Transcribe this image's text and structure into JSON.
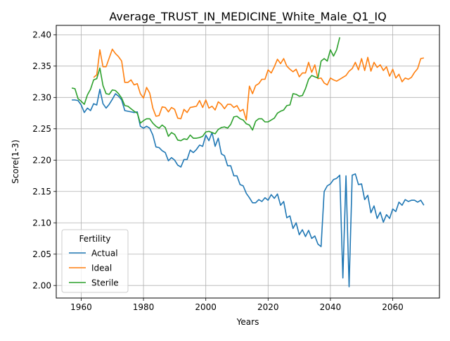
{
  "chart_data": {
    "type": "line",
    "title": "Average_TRUST_IN_MEDICINE_White_Male_Q1_IQ",
    "xlabel": "Years",
    "ylabel": "Score(1-3)",
    "xlim": [
      1952,
      2075
    ],
    "ylim": [
      1.98,
      2.415
    ],
    "x_ticks": [
      1960,
      1980,
      2000,
      2020,
      2040,
      2060
    ],
    "y_ticks": [
      2.0,
      2.05,
      2.1,
      2.15,
      2.2,
      2.25,
      2.3,
      2.35,
      2.4
    ],
    "y_tick_labels": [
      "2.00",
      "2.05",
      "2.10",
      "2.15",
      "2.20",
      "2.25",
      "2.30",
      "2.35",
      "2.40"
    ],
    "grid": true,
    "legend": {
      "title": "Fertility",
      "placement": "lower-left"
    },
    "series": [
      {
        "name": "Actual",
        "color": "#1f77b4",
        "points": [
          [
            1957,
            2.296
          ],
          [
            1958,
            2.296
          ],
          [
            1959,
            2.295
          ],
          [
            1960,
            2.288
          ],
          [
            1961,
            2.276
          ],
          [
            1962,
            2.283
          ],
          [
            1963,
            2.279
          ],
          [
            1964,
            2.29
          ],
          [
            1965,
            2.288
          ],
          [
            1966,
            2.313
          ],
          [
            1967,
            2.29
          ],
          [
            1968,
            2.283
          ],
          [
            1969,
            2.289
          ],
          [
            1970,
            2.297
          ],
          [
            1971,
            2.306
          ],
          [
            1972,
            2.302
          ],
          [
            1973,
            2.296
          ],
          [
            1974,
            2.279
          ],
          [
            1975,
            2.278
          ],
          [
            1976,
            2.277
          ],
          [
            1977,
            2.276
          ],
          [
            1978,
            2.277
          ],
          [
            1979,
            2.254
          ],
          [
            1980,
            2.251
          ],
          [
            1981,
            2.254
          ],
          [
            1982,
            2.251
          ],
          [
            1983,
            2.24
          ],
          [
            1984,
            2.221
          ],
          [
            1985,
            2.22
          ],
          [
            1986,
            2.215
          ],
          [
            1987,
            2.212
          ],
          [
            1988,
            2.199
          ],
          [
            1989,
            2.204
          ],
          [
            1990,
            2.2
          ],
          [
            1991,
            2.192
          ],
          [
            1992,
            2.189
          ],
          [
            1993,
            2.201
          ],
          [
            1994,
            2.201
          ],
          [
            1995,
            2.216
          ],
          [
            1996,
            2.212
          ],
          [
            1997,
            2.217
          ],
          [
            1998,
            2.224
          ],
          [
            1999,
            2.222
          ],
          [
            2000,
            2.24
          ],
          [
            2001,
            2.231
          ],
          [
            2002,
            2.244
          ],
          [
            2003,
            2.222
          ],
          [
            2004,
            2.235
          ],
          [
            2005,
            2.21
          ],
          [
            2006,
            2.207
          ],
          [
            2007,
            2.191
          ],
          [
            2008,
            2.191
          ],
          [
            2009,
            2.175
          ],
          [
            2010,
            2.175
          ],
          [
            2011,
            2.161
          ],
          [
            2012,
            2.159
          ],
          [
            2013,
            2.147
          ],
          [
            2014,
            2.14
          ],
          [
            2015,
            2.132
          ],
          [
            2016,
            2.132
          ],
          [
            2017,
            2.137
          ],
          [
            2018,
            2.134
          ],
          [
            2019,
            2.14
          ],
          [
            2020,
            2.136
          ],
          [
            2021,
            2.145
          ],
          [
            2022,
            2.139
          ],
          [
            2023,
            2.146
          ],
          [
            2024,
            2.128
          ],
          [
            2025,
            2.134
          ],
          [
            2026,
            2.108
          ],
          [
            2027,
            2.111
          ],
          [
            2028,
            2.091
          ],
          [
            2029,
            2.1
          ],
          [
            2030,
            2.081
          ],
          [
            2031,
            2.089
          ],
          [
            2032,
            2.078
          ],
          [
            2033,
            2.088
          ],
          [
            2034,
            2.075
          ],
          [
            2035,
            2.079
          ],
          [
            2036,
            2.066
          ],
          [
            2037,
            2.062
          ],
          [
            2038,
            2.15
          ],
          [
            2039,
            2.159
          ],
          [
            2040,
            2.162
          ],
          [
            2041,
            2.169
          ],
          [
            2042,
            2.171
          ],
          [
            2043,
            2.176
          ],
          [
            2044,
            2.012
          ],
          [
            2045,
            2.175
          ],
          [
            2046,
            1.998
          ],
          [
            2047,
            2.176
          ],
          [
            2048,
            2.178
          ],
          [
            2049,
            2.161
          ],
          [
            2050,
            2.162
          ],
          [
            2051,
            2.137
          ],
          [
            2052,
            2.144
          ],
          [
            2053,
            2.116
          ],
          [
            2054,
            2.127
          ],
          [
            2055,
            2.107
          ],
          [
            2056,
            2.117
          ],
          [
            2057,
            2.101
          ],
          [
            2058,
            2.113
          ],
          [
            2059,
            2.107
          ],
          [
            2060,
            2.122
          ],
          [
            2061,
            2.118
          ],
          [
            2062,
            2.133
          ],
          [
            2063,
            2.128
          ],
          [
            2064,
            2.137
          ],
          [
            2065,
            2.134
          ],
          [
            2066,
            2.136
          ],
          [
            2067,
            2.136
          ],
          [
            2068,
            2.133
          ],
          [
            2069,
            2.136
          ],
          [
            2070,
            2.128
          ]
        ]
      },
      {
        "name": "Ideal",
        "color": "#ff7f0e",
        "points": [
          [
            1964,
            2.332
          ],
          [
            1965,
            2.336
          ],
          [
            1966,
            2.376
          ],
          [
            1967,
            2.349
          ],
          [
            1968,
            2.349
          ],
          [
            1969,
            2.363
          ],
          [
            1970,
            2.377
          ],
          [
            1971,
            2.37
          ],
          [
            1972,
            2.365
          ],
          [
            1973,
            2.358
          ],
          [
            1974,
            2.324
          ],
          [
            1975,
            2.324
          ],
          [
            1976,
            2.328
          ],
          [
            1977,
            2.32
          ],
          [
            1978,
            2.322
          ],
          [
            1979,
            2.306
          ],
          [
            1980,
            2.299
          ],
          [
            1981,
            2.316
          ],
          [
            1982,
            2.307
          ],
          [
            1983,
            2.283
          ],
          [
            1984,
            2.27
          ],
          [
            1985,
            2.271
          ],
          [
            1986,
            2.285
          ],
          [
            1987,
            2.284
          ],
          [
            1988,
            2.277
          ],
          [
            1989,
            2.284
          ],
          [
            1990,
            2.281
          ],
          [
            1991,
            2.267
          ],
          [
            1992,
            2.266
          ],
          [
            1993,
            2.281
          ],
          [
            1994,
            2.276
          ],
          [
            1995,
            2.284
          ],
          [
            1996,
            2.285
          ],
          [
            1997,
            2.286
          ],
          [
            1998,
            2.295
          ],
          [
            1999,
            2.284
          ],
          [
            2000,
            2.296
          ],
          [
            2001,
            2.283
          ],
          [
            2002,
            2.286
          ],
          [
            2003,
            2.28
          ],
          [
            2004,
            2.293
          ],
          [
            2005,
            2.289
          ],
          [
            2006,
            2.282
          ],
          [
            2007,
            2.289
          ],
          [
            2008,
            2.289
          ],
          [
            2009,
            2.284
          ],
          [
            2010,
            2.287
          ],
          [
            2011,
            2.278
          ],
          [
            2012,
            2.281
          ],
          [
            2013,
            2.264
          ],
          [
            2014,
            2.318
          ],
          [
            2015,
            2.306
          ],
          [
            2016,
            2.319
          ],
          [
            2017,
            2.322
          ],
          [
            2018,
            2.329
          ],
          [
            2019,
            2.329
          ],
          [
            2020,
            2.344
          ],
          [
            2021,
            2.339
          ],
          [
            2022,
            2.349
          ],
          [
            2023,
            2.361
          ],
          [
            2024,
            2.354
          ],
          [
            2025,
            2.362
          ],
          [
            2026,
            2.35
          ],
          [
            2027,
            2.345
          ],
          [
            2028,
            2.341
          ],
          [
            2029,
            2.345
          ],
          [
            2030,
            2.333
          ],
          [
            2031,
            2.339
          ],
          [
            2032,
            2.339
          ],
          [
            2033,
            2.356
          ],
          [
            2034,
            2.34
          ],
          [
            2035,
            2.352
          ],
          [
            2036,
            2.33
          ],
          [
            2037,
            2.331
          ],
          [
            2038,
            2.323
          ],
          [
            2039,
            2.32
          ],
          [
            2040,
            2.331
          ],
          [
            2041,
            2.328
          ],
          [
            2042,
            2.326
          ],
          [
            2043,
            2.329
          ],
          [
            2044,
            2.332
          ],
          [
            2045,
            2.335
          ],
          [
            2046,
            2.342
          ],
          [
            2047,
            2.346
          ],
          [
            2048,
            2.356
          ],
          [
            2049,
            2.344
          ],
          [
            2050,
            2.362
          ],
          [
            2051,
            2.343
          ],
          [
            2052,
            2.364
          ],
          [
            2053,
            2.342
          ],
          [
            2054,
            2.356
          ],
          [
            2055,
            2.348
          ],
          [
            2056,
            2.352
          ],
          [
            2057,
            2.343
          ],
          [
            2058,
            2.349
          ],
          [
            2059,
            2.334
          ],
          [
            2060,
            2.345
          ],
          [
            2061,
            2.331
          ],
          [
            2062,
            2.337
          ],
          [
            2063,
            2.325
          ],
          [
            2064,
            2.331
          ],
          [
            2065,
            2.329
          ],
          [
            2066,
            2.332
          ],
          [
            2067,
            2.34
          ],
          [
            2068,
            2.346
          ],
          [
            2069,
            2.362
          ],
          [
            2070,
            2.363
          ]
        ]
      },
      {
        "name": "Sterile",
        "color": "#2ca02c",
        "points": [
          [
            1957,
            2.315
          ],
          [
            1958,
            2.314
          ],
          [
            1959,
            2.298
          ],
          [
            1960,
            2.294
          ],
          [
            1961,
            2.289
          ],
          [
            1962,
            2.304
          ],
          [
            1963,
            2.313
          ],
          [
            1964,
            2.328
          ],
          [
            1965,
            2.33
          ],
          [
            1966,
            2.347
          ],
          [
            1967,
            2.319
          ],
          [
            1968,
            2.306
          ],
          [
            1969,
            2.305
          ],
          [
            1970,
            2.312
          ],
          [
            1971,
            2.311
          ],
          [
            1972,
            2.306
          ],
          [
            1973,
            2.299
          ],
          [
            1974,
            2.287
          ],
          [
            1975,
            2.286
          ],
          [
            1976,
            2.282
          ],
          [
            1977,
            2.278
          ],
          [
            1978,
            2.275
          ],
          [
            1979,
            2.259
          ],
          [
            1980,
            2.263
          ],
          [
            1981,
            2.266
          ],
          [
            1982,
            2.266
          ],
          [
            1983,
            2.259
          ],
          [
            1984,
            2.254
          ],
          [
            1985,
            2.251
          ],
          [
            1986,
            2.256
          ],
          [
            1987,
            2.252
          ],
          [
            1988,
            2.238
          ],
          [
            1989,
            2.244
          ],
          [
            1990,
            2.241
          ],
          [
            1991,
            2.232
          ],
          [
            1992,
            2.231
          ],
          [
            1993,
            2.234
          ],
          [
            1994,
            2.233
          ],
          [
            1995,
            2.24
          ],
          [
            1996,
            2.235
          ],
          [
            1997,
            2.235
          ],
          [
            1998,
            2.236
          ],
          [
            1999,
            2.238
          ],
          [
            2000,
            2.245
          ],
          [
            2001,
            2.246
          ],
          [
            2002,
            2.244
          ],
          [
            2003,
            2.242
          ],
          [
            2004,
            2.249
          ],
          [
            2005,
            2.252
          ],
          [
            2006,
            2.253
          ],
          [
            2007,
            2.251
          ],
          [
            2008,
            2.257
          ],
          [
            2009,
            2.269
          ],
          [
            2010,
            2.27
          ],
          [
            2011,
            2.266
          ],
          [
            2012,
            2.264
          ],
          [
            2013,
            2.258
          ],
          [
            2014,
            2.256
          ],
          [
            2015,
            2.248
          ],
          [
            2016,
            2.262
          ],
          [
            2017,
            2.266
          ],
          [
            2018,
            2.266
          ],
          [
            2019,
            2.261
          ],
          [
            2020,
            2.261
          ],
          [
            2021,
            2.264
          ],
          [
            2022,
            2.267
          ],
          [
            2023,
            2.275
          ],
          [
            2024,
            2.278
          ],
          [
            2025,
            2.28
          ],
          [
            2026,
            2.287
          ],
          [
            2027,
            2.288
          ],
          [
            2028,
            2.306
          ],
          [
            2029,
            2.305
          ],
          [
            2030,
            2.302
          ],
          [
            2031,
            2.303
          ],
          [
            2032,
            2.314
          ],
          [
            2033,
            2.329
          ],
          [
            2034,
            2.335
          ],
          [
            2035,
            2.333
          ],
          [
            2036,
            2.331
          ],
          [
            2037,
            2.358
          ],
          [
            2038,
            2.362
          ],
          [
            2039,
            2.358
          ],
          [
            2040,
            2.376
          ],
          [
            2041,
            2.366
          ],
          [
            2042,
            2.376
          ],
          [
            2043,
            2.396
          ]
        ]
      }
    ]
  }
}
